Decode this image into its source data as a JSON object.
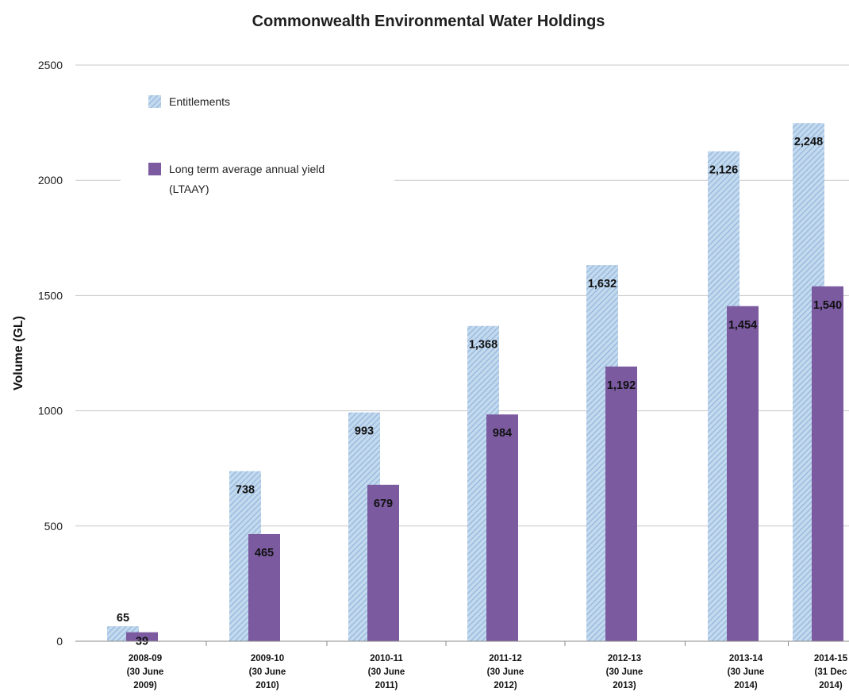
{
  "chart_data": {
    "type": "bar",
    "title": "Commonwealth Environmental Water Holdings",
    "xlabel": "",
    "ylabel": "Volume (GL)",
    "ylim": [
      0,
      2500
    ],
    "yticks": [
      "0",
      "500",
      "1000",
      "1500",
      "2000",
      "2500"
    ],
    "grid": true,
    "legend_position": "top-left",
    "categories": [
      [
        "2008-09",
        "(30 June",
        "2009)"
      ],
      [
        "2009-10",
        "(30 June",
        "2010)"
      ],
      [
        "2010-11",
        "(30 June",
        "2011)"
      ],
      [
        "2011-12",
        "(30 June",
        "2012)"
      ],
      [
        "2012-13",
        "(30 June",
        "2013)"
      ],
      [
        "2013-14",
        "(30 June",
        "2014)"
      ],
      [
        "2014-15",
        "(31 Dec",
        "2014)"
      ]
    ],
    "series": [
      {
        "name": "Entitlements",
        "color": "#a9c6e6",
        "pattern": "diagonal-hatch",
        "values": [
          65,
          738,
          993,
          1368,
          1632,
          2126,
          2248
        ],
        "labels": [
          "65",
          "738",
          "993",
          "1,368",
          "1,632",
          "2,126",
          "2,248"
        ]
      },
      {
        "name": "Long term average annual yield (LTAAY)",
        "legend_lines": [
          "Long term average annual yield",
          "(LTAAY)"
        ],
        "color": "#7b5aa0",
        "values": [
          39,
          465,
          679,
          984,
          1192,
          1454,
          1540
        ],
        "labels": [
          "39",
          "465",
          "679",
          "984",
          "1,192",
          "1,454",
          "1,540"
        ]
      }
    ]
  }
}
